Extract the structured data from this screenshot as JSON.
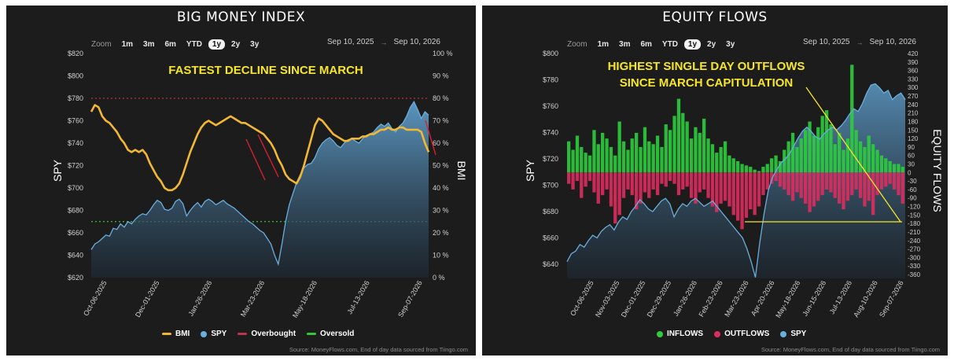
{
  "zoom_label": "Zoom",
  "zoom_buttons": [
    "1m",
    "3m",
    "6m",
    "YTD",
    "1y",
    "2y",
    "3y"
  ],
  "zoom_active": "1y",
  "source": "Source: MoneyFlows.com, End of day data sourced from Tiingo.com",
  "colors": {
    "bmi": "#f2b733",
    "spy": "#6aaedc",
    "overbought": "#c0334b",
    "oversold": "#37c43a",
    "inflows": "#2ecc3e",
    "outflows": "#dc2d5f",
    "annotation": "#f5e62a",
    "panel": "#1c1c1c"
  },
  "left": {
    "title": "BIG MONEY INDEX",
    "range_from": "Sep 10, 2025",
    "range_to": "Sep 10, 2026",
    "annotation": "FASTEST DECLINE SINCE MARCH",
    "legend": [
      "BMI",
      "SPY",
      "Overbought",
      "Oversold"
    ]
  },
  "right": {
    "title": "EQUITY FLOWS",
    "range_from": "Sep 10, 2025",
    "range_to": "Sep 10, 2026",
    "annotation_line1": "HIGHEST SINGLE DAY OUTFLOWS",
    "annotation_line2": "SINCE MARCH CAPITULATION",
    "legend": [
      "INFLOWS",
      "OUTFLOWS",
      "SPY"
    ]
  },
  "chart_data": [
    {
      "type": "line",
      "title": "BIG MONEY INDEX",
      "ylabel": "SPY",
      "y2label": "BMI",
      "ylim": [
        620,
        820
      ],
      "y_ticks": [
        "$820",
        "$800",
        "$780",
        "$760",
        "$740",
        "$720",
        "$700",
        "$680",
        "$660",
        "$640",
        "$620"
      ],
      "y2lim": [
        0,
        100
      ],
      "y2_ticks": [
        "100 %",
        "90 %",
        "80 %",
        "70 %",
        "60 %",
        "50 %",
        "40 %",
        "30 %",
        "20 %",
        "10 %",
        "0 %"
      ],
      "x_ticks": [
        "Oct-06-2025",
        "Dec-01-2025",
        "Jan-26-2026",
        "Mar-23-2026",
        "May-18-2026",
        "Jul-13-2026",
        "Sep-07-2026"
      ],
      "overbought": 80,
      "oversold": 25,
      "series": [
        {
          "name": "BMI",
          "axis": "right",
          "values": [
            74,
            77,
            76,
            72,
            70,
            69,
            67,
            65,
            62,
            60,
            57,
            56,
            57,
            56,
            57,
            55,
            51,
            48,
            45,
            43,
            40,
            39,
            39,
            40,
            42,
            46,
            51,
            56,
            60,
            64,
            67,
            69,
            70,
            69,
            68,
            69,
            70,
            71,
            72,
            71,
            70,
            69,
            69,
            68,
            67,
            66,
            65,
            64,
            62,
            60,
            57,
            53,
            50,
            46,
            44,
            43,
            42,
            45,
            50,
            56,
            62,
            68,
            71,
            70,
            68,
            66,
            64,
            63,
            62,
            61,
            61,
            62,
            62,
            62,
            63,
            63,
            64,
            64,
            65,
            66,
            66,
            67,
            66,
            66,
            67,
            67,
            66,
            66,
            66,
            66,
            65,
            60,
            56
          ]
        },
        {
          "name": "SPY",
          "axis": "left",
          "values": [
            645,
            650,
            652,
            655,
            658,
            657,
            664,
            663,
            668,
            665,
            670,
            668,
            672,
            675,
            677,
            676,
            680,
            685,
            689,
            687,
            681,
            680,
            682,
            688,
            690,
            686,
            675,
            680,
            684,
            687,
            683,
            688,
            690,
            688,
            685,
            687,
            689,
            686,
            684,
            682,
            679,
            676,
            673,
            670,
            668,
            665,
            662,
            660,
            655,
            650,
            640,
            632,
            650,
            670,
            685,
            695,
            705,
            712,
            718,
            721,
            722,
            727,
            735,
            740,
            743,
            745,
            742,
            738,
            736,
            740,
            743,
            744,
            742,
            740,
            744,
            747,
            748,
            750,
            754,
            757,
            755,
            758,
            753,
            750,
            755,
            758,
            764,
            772,
            777,
            770,
            762,
            768,
            765
          ]
        }
      ]
    },
    {
      "type": "bar",
      "title": "EQUITY FLOWS",
      "ylabel": "SPY",
      "y2label": "EQUITY FLOWS",
      "ylim": [
        625,
        800
      ],
      "y_ticks": [
        "$800",
        "$780",
        "$760",
        "$740",
        "$720",
        "$700",
        "$680",
        "$660",
        "$640"
      ],
      "y2lim": [
        -390,
        420
      ],
      "y2_ticks": [
        "420",
        "390",
        "360",
        "330",
        "300",
        "270",
        "240",
        "210",
        "180",
        "150",
        "120",
        "90",
        "60",
        "30",
        "0",
        "-30",
        "-60",
        "-90",
        "-120",
        "-150",
        "-180",
        "-210",
        "-240",
        "-270",
        "-300",
        "-330",
        "-360"
      ],
      "x_ticks": [
        "Oct-06-2025",
        "Nov-03-2025",
        "Dec-01-2025",
        "Dec-29-2025",
        "Jan-26-2026",
        "Feb-23-2026",
        "Mar-23-2026",
        "Apr-20-2026",
        "May-18-2026",
        "Jun-15-2026",
        "Jul-13-2026",
        "Aug-10-2026",
        "Sep-07-2026"
      ],
      "series": [
        {
          "name": "INFLOWS",
          "values": [
            110,
            80,
            130,
            90,
            70,
            60,
            150,
            100,
            140,
            120,
            90,
            60,
            180,
            110,
            80,
            120,
            140,
            90,
            160,
            110,
            100,
            130,
            90,
            170,
            150,
            200,
            260,
            210,
            180,
            120,
            160,
            140,
            190,
            120,
            100,
            70,
            90,
            110,
            60,
            50,
            40,
            30,
            25,
            20,
            10,
            5,
            20,
            30,
            50,
            60,
            40,
            80,
            110,
            140,
            90,
            120,
            150,
            180,
            130,
            160,
            200,
            220,
            170,
            100,
            140,
            80,
            120,
            380,
            150,
            110,
            90,
            130,
            100,
            80,
            60,
            50,
            40,
            30,
            30,
            20
          ]
        },
        {
          "name": "OUTFLOWS",
          "values": [
            -40,
            -60,
            -30,
            -90,
            -50,
            -30,
            -70,
            -110,
            -80,
            -60,
            -120,
            -180,
            -150,
            -90,
            -60,
            -80,
            -130,
            -110,
            -70,
            -90,
            -60,
            -80,
            -40,
            -50,
            -30,
            -40,
            -80,
            -60,
            -50,
            -90,
            -110,
            -70,
            -60,
            -90,
            -120,
            -140,
            -110,
            -100,
            -120,
            -150,
            -170,
            -200,
            -160,
            -130,
            -150,
            -120,
            -80,
            -60,
            -40,
            -30,
            -50,
            -60,
            -80,
            -100,
            -70,
            -90,
            -110,
            -140,
            -120,
            -100,
            -80,
            -60,
            -70,
            -90,
            -110,
            -130,
            -100,
            -80,
            -60,
            -90,
            -120,
            -100,
            -150,
            -80,
            -60,
            -50,
            -40,
            -60,
            -80,
            -110
          ]
        },
        {
          "name": "SPY",
          "values": [
            642,
            648,
            650,
            655,
            653,
            658,
            662,
            660,
            665,
            668,
            670,
            666,
            672,
            676,
            674,
            680,
            684,
            689,
            686,
            682,
            680,
            684,
            688,
            690,
            686,
            676,
            682,
            686,
            684,
            688,
            690,
            687,
            684,
            686,
            688,
            684,
            680,
            676,
            672,
            668,
            664,
            660,
            652,
            642,
            630,
            656,
            678,
            696,
            706,
            712,
            717,
            720,
            724,
            730,
            736,
            741,
            744,
            741,
            737,
            735,
            739,
            742,
            744,
            742,
            745,
            749,
            754,
            758,
            756,
            762,
            770,
            776,
            777,
            774,
            770,
            772,
            765,
            768,
            770,
            765
          ]
        }
      ]
    }
  ]
}
